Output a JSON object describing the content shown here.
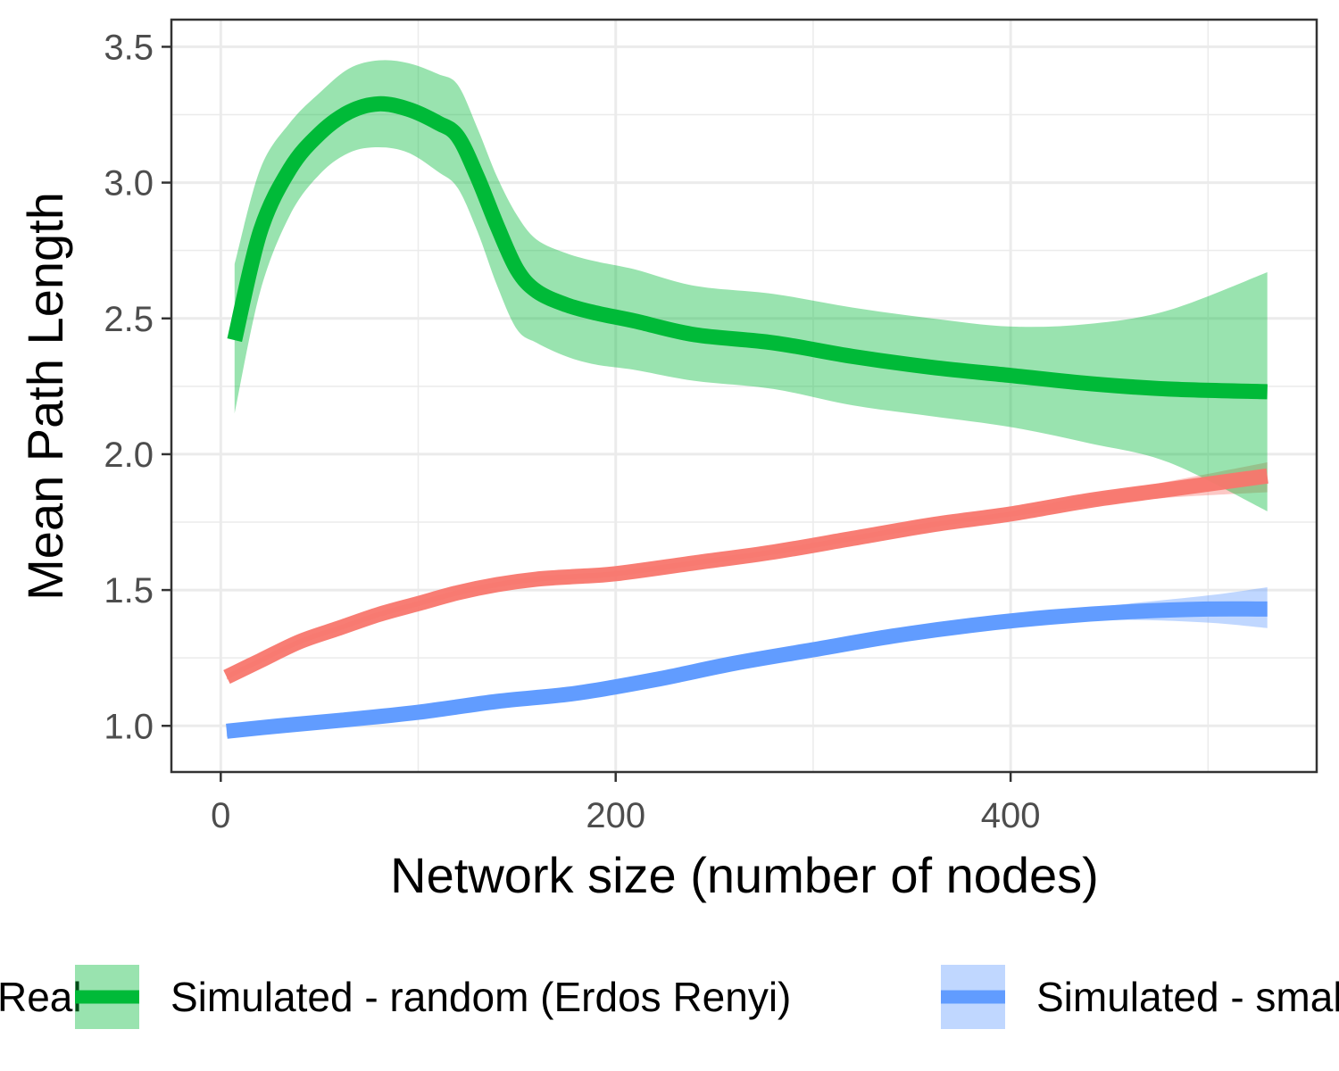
{
  "chart_data": {
    "type": "line",
    "xlabel": "Network size (number of nodes)",
    "ylabel": "Mean Path Length",
    "xlim": [
      -25,
      555
    ],
    "ylim": [
      0.83,
      3.6
    ],
    "x_ticks": [
      0,
      200,
      400
    ],
    "x_tick_labels": [
      "0",
      "200",
      "400"
    ],
    "y_ticks": [
      1.0,
      1.5,
      2.0,
      2.5,
      3.0,
      3.5
    ],
    "y_tick_labels": [
      "1.0",
      "1.5",
      "2.0",
      "2.5",
      "3.0",
      "3.5"
    ],
    "grid": true,
    "legend_position": "bottom",
    "legend_entries": [
      "Real",
      "Simulated - random (Erdos Renyi)",
      "Simulated - small world"
    ],
    "series": [
      {
        "name": "Real",
        "color": "#F8766D",
        "band_color": "#F8766D",
        "x": [
          3,
          20,
          40,
          60,
          80,
          100,
          120,
          140,
          160,
          180,
          200,
          240,
          280,
          320,
          360,
          400,
          440,
          480,
          530
        ],
        "y": [
          1.18,
          1.24,
          1.31,
          1.36,
          1.41,
          1.45,
          1.49,
          1.52,
          1.54,
          1.55,
          1.56,
          1.6,
          1.64,
          1.69,
          1.74,
          1.78,
          1.83,
          1.87,
          1.92
        ],
        "lower": [
          1.17,
          1.23,
          1.3,
          1.35,
          1.4,
          1.44,
          1.48,
          1.51,
          1.53,
          1.54,
          1.55,
          1.59,
          1.63,
          1.68,
          1.73,
          1.77,
          1.81,
          1.84,
          1.86
        ],
        "upper": [
          1.19,
          1.25,
          1.32,
          1.37,
          1.42,
          1.46,
          1.5,
          1.53,
          1.55,
          1.56,
          1.57,
          1.61,
          1.65,
          1.7,
          1.75,
          1.79,
          1.85,
          1.9,
          1.97
        ]
      },
      {
        "name": "Simulated - random (Erdos Renyi)",
        "color": "#00BA38",
        "band_color": "#00BA38",
        "x": [
          7,
          20,
          35,
          50,
          65,
          80,
          95,
          110,
          120,
          130,
          140,
          150,
          160,
          175,
          190,
          210,
          240,
          280,
          320,
          360,
          400,
          440,
          480,
          530
        ],
        "y": [
          2.42,
          2.82,
          3.05,
          3.18,
          3.26,
          3.29,
          3.27,
          3.22,
          3.17,
          3.02,
          2.84,
          2.68,
          2.6,
          2.55,
          2.52,
          2.49,
          2.44,
          2.41,
          2.36,
          2.32,
          2.29,
          2.26,
          2.24,
          2.23
        ],
        "lower": [
          2.15,
          2.6,
          2.88,
          3.03,
          3.11,
          3.13,
          3.11,
          3.04,
          2.98,
          2.82,
          2.62,
          2.46,
          2.41,
          2.36,
          2.33,
          2.31,
          2.27,
          2.24,
          2.18,
          2.14,
          2.1,
          2.04,
          1.97,
          1.79
        ],
        "upper": [
          2.7,
          3.05,
          3.22,
          3.33,
          3.42,
          3.45,
          3.44,
          3.4,
          3.36,
          3.2,
          3.02,
          2.88,
          2.79,
          2.74,
          2.71,
          2.68,
          2.62,
          2.59,
          2.54,
          2.5,
          2.47,
          2.48,
          2.53,
          2.67
        ]
      },
      {
        "name": "Simulated - small world",
        "color": "#619CFF",
        "band_color": "#619CFF",
        "x": [
          3,
          30,
          60,
          100,
          140,
          180,
          220,
          260,
          300,
          340,
          380,
          420,
          460,
          500,
          530
        ],
        "y": [
          0.98,
          1.0,
          1.02,
          1.05,
          1.09,
          1.12,
          1.17,
          1.23,
          1.28,
          1.33,
          1.37,
          1.4,
          1.42,
          1.43,
          1.43
        ],
        "lower": [
          0.96,
          0.99,
          1.01,
          1.04,
          1.08,
          1.11,
          1.16,
          1.22,
          1.27,
          1.32,
          1.36,
          1.38,
          1.39,
          1.38,
          1.36
        ],
        "upper": [
          1.0,
          1.01,
          1.03,
          1.06,
          1.1,
          1.13,
          1.18,
          1.24,
          1.29,
          1.34,
          1.38,
          1.42,
          1.45,
          1.48,
          1.51
        ]
      }
    ]
  }
}
